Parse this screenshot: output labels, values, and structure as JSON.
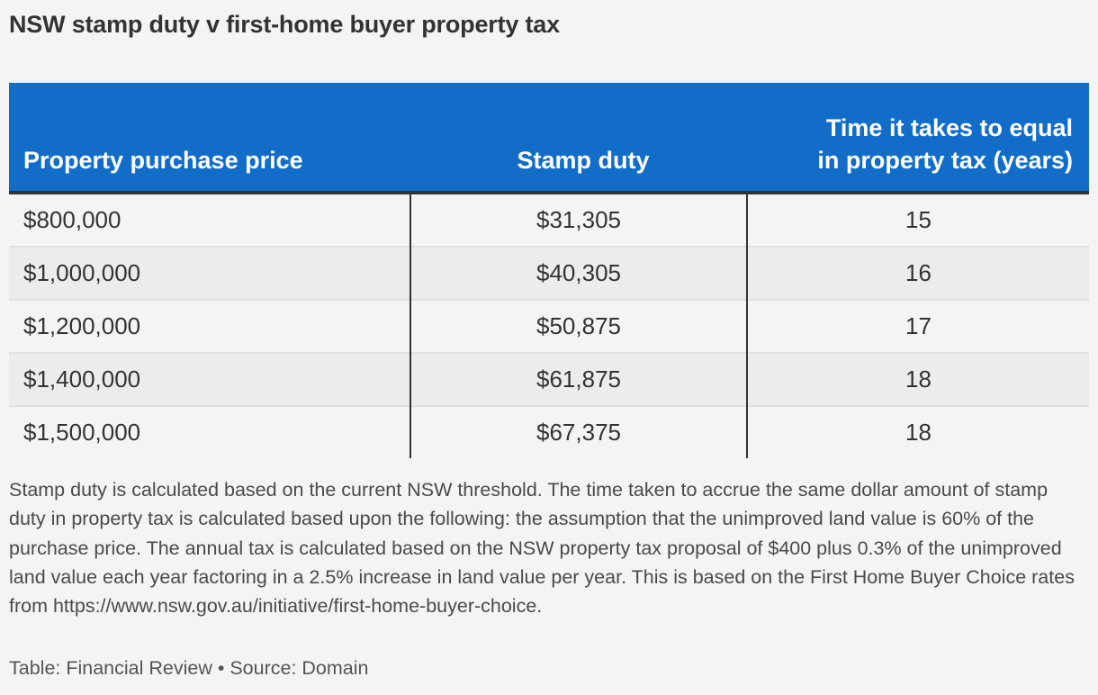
{
  "title": "NSW stamp duty v first-home buyer property tax",
  "colors": {
    "header_background": "#116dc8",
    "header_text": "#ffffff",
    "background": "#f4f4f4",
    "alt_row": "#ececec",
    "text": "#333333"
  },
  "table": {
    "headers": [
      "Property purchase price",
      "Stamp duty",
      "Time it takes to equal in property tax (years)"
    ],
    "header_years_line1": "Time it takes to equal",
    "header_years_line2": "in property tax (years)",
    "rows": [
      {
        "price": "$800,000",
        "stamp_duty": "$31,305",
        "years": "15"
      },
      {
        "price": "$1,000,000",
        "stamp_duty": "$40,305",
        "years": "16"
      },
      {
        "price": "$1,200,000",
        "stamp_duty": "$50,875",
        "years": "17"
      },
      {
        "price": "$1,400,000",
        "stamp_duty": "$61,875",
        "years": "18"
      },
      {
        "price": "$1,500,000",
        "stamp_duty": "$67,375",
        "years": "18"
      }
    ]
  },
  "notes": "Stamp duty is calculated based on the current NSW threshold. The time taken to accrue the same dollar amount of stamp duty in property tax is calculated based upon the following: the assumption that the unimproved land value is 60% of the purchase price. The annual tax is calculated based on the NSW property tax proposal of $400 plus 0.3% of the unimproved land value each year factoring in a 2.5% increase in land value per year. This is based on the First Home Buyer Choice rates from https://www.nsw.gov.au/initiative/first-home-buyer-choice.",
  "credit": "Table: Financial Review • Source: Domain",
  "chart_data": {
    "type": "table",
    "title": "NSW stamp duty v first-home buyer property tax",
    "columns": [
      "Property purchase price",
      "Stamp duty",
      "Time it takes to equal in property tax (years)"
    ],
    "rows": [
      [
        800000,
        31305,
        15
      ],
      [
        1000000,
        40305,
        16
      ],
      [
        1200000,
        50875,
        17
      ],
      [
        1400000,
        61875,
        18
      ],
      [
        1500000,
        67375,
        18
      ]
    ],
    "categories": [
      "$800,000",
      "$1,000,000",
      "$1,200,000",
      "$1,400,000",
      "$1,500,000"
    ],
    "series": [
      {
        "name": "Stamp duty",
        "values": [
          31305,
          40305,
          50875,
          61875,
          67375
        ]
      },
      {
        "name": "Time it takes to equal in property tax (years)",
        "values": [
          15,
          16,
          17,
          18,
          18
        ]
      }
    ],
    "notes": "Stamp duty is calculated based on the current NSW threshold. The time taken to accrue the same dollar amount of stamp duty in property tax is calculated based upon the following: the assumption that the unimproved land value is 60% of the purchase price. The annual tax is calculated based on the NSW property tax proposal of $400 plus 0.3% of the unimproved land value each year factoring in a 2.5% increase in land value per year. This is based on the First Home Buyer Choice rates from https://www.nsw.gov.au/initiative/first-home-buyer-choice.",
    "source": "Table: Financial Review • Source: Domain"
  }
}
